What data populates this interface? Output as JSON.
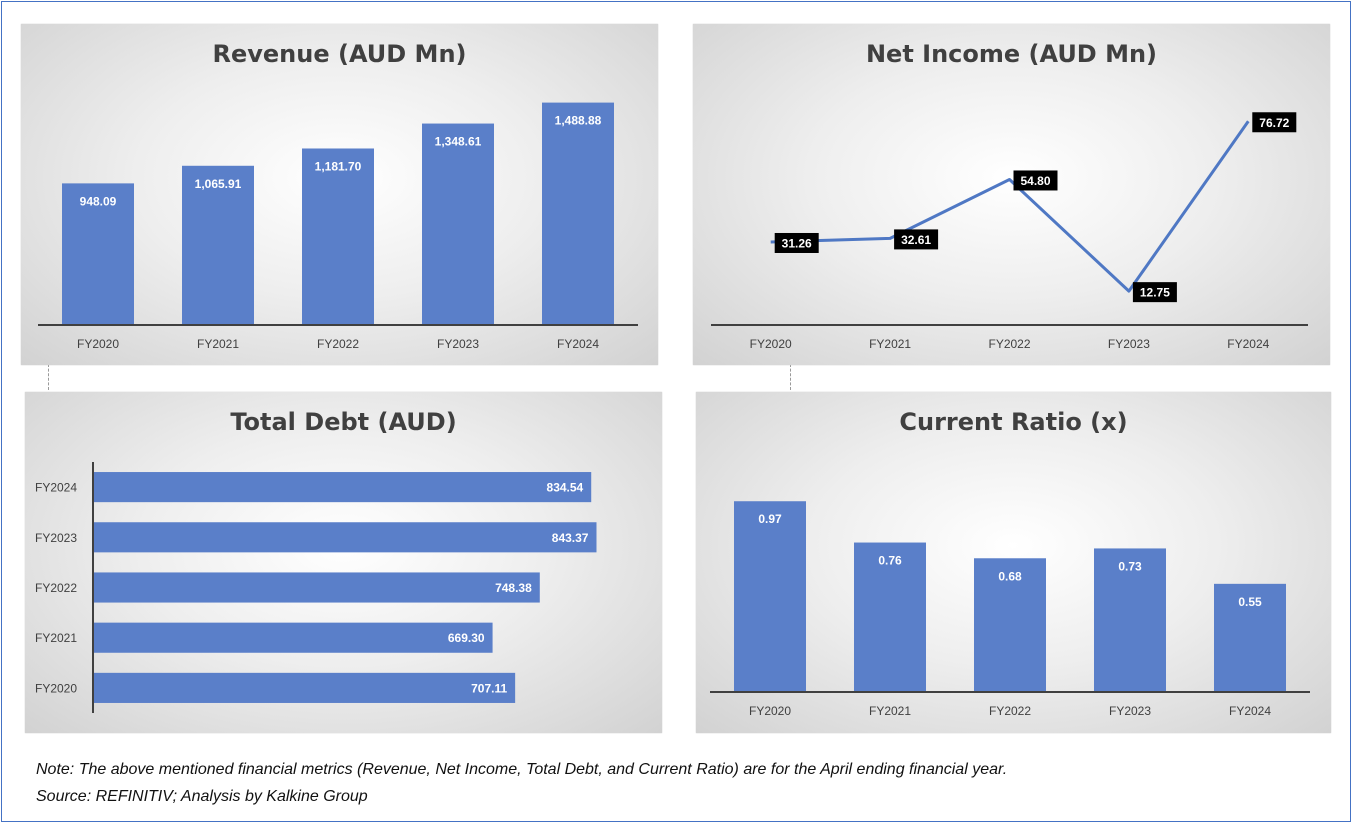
{
  "colors": {
    "bar": "#5a7fc9",
    "line": "#4f78c4",
    "axis": "#404040",
    "label_box": "#000000"
  },
  "charts": {
    "revenue": {
      "type": "bar",
      "title": "Revenue (AUD Mn)",
      "categories": [
        "FY2020",
        "FY2021",
        "FY2022",
        "FY2023",
        "FY2024"
      ],
      "values": [
        948.09,
        1065.91,
        1181.7,
        1348.61,
        1488.88
      ],
      "value_labels": [
        "948.09",
        "1,065.91",
        "1,181.70",
        "1,348.61",
        "1,488.88"
      ],
      "ylim": [
        0,
        1600
      ]
    },
    "net_income": {
      "type": "line",
      "title": "Net Income (AUD Mn)",
      "categories": [
        "FY2020",
        "FY2021",
        "FY2022",
        "FY2023",
        "FY2024"
      ],
      "values": [
        31.26,
        32.61,
        54.8,
        12.75,
        76.72
      ],
      "value_labels": [
        "31.26",
        "32.61",
        "54.80",
        "12.75",
        "76.72"
      ],
      "ylim": [
        0,
        90
      ]
    },
    "total_debt": {
      "type": "bar",
      "orientation": "horizontal",
      "title": "Total Debt (AUD)",
      "categories": [
        "FY2024",
        "FY2023",
        "FY2022",
        "FY2021",
        "FY2020"
      ],
      "values": [
        834.54,
        843.37,
        748.38,
        669.3,
        707.11
      ],
      "value_labels": [
        "834.54",
        "843.37",
        "748.38",
        "669.30",
        "707.11"
      ],
      "xlim": [
        0,
        1000
      ]
    },
    "current_ratio": {
      "type": "bar",
      "title": "Current Ratio (x)",
      "categories": [
        "FY2020",
        "FY2021",
        "FY2022",
        "FY2023",
        "FY2024"
      ],
      "values": [
        0.97,
        0.76,
        0.68,
        0.73,
        0.55
      ],
      "value_labels": [
        "0.97",
        "0.76",
        "0.68",
        "0.73",
        "0.55"
      ],
      "ylim": [
        0,
        1.2
      ]
    }
  },
  "chart_data": [
    {
      "type": "bar",
      "title": "Revenue (AUD Mn)",
      "categories": [
        "FY2020",
        "FY2021",
        "FY2022",
        "FY2023",
        "FY2024"
      ],
      "values": [
        948.09,
        1065.91,
        1181.7,
        1348.61,
        1488.88
      ],
      "xlabel": "",
      "ylabel": "",
      "legend": "none",
      "grid": false
    },
    {
      "type": "line",
      "title": "Net Income (AUD Mn)",
      "categories": [
        "FY2020",
        "FY2021",
        "FY2022",
        "FY2023",
        "FY2024"
      ],
      "values": [
        31.26,
        32.61,
        54.8,
        12.75,
        76.72
      ],
      "xlabel": "",
      "ylabel": "",
      "legend": "none",
      "grid": false
    },
    {
      "type": "bar",
      "orientation": "horizontal",
      "title": "Total Debt (AUD)",
      "categories": [
        "FY2024",
        "FY2023",
        "FY2022",
        "FY2021",
        "FY2020"
      ],
      "values": [
        834.54,
        843.37,
        748.38,
        669.3,
        707.11
      ],
      "xlabel": "",
      "ylabel": "",
      "legend": "none",
      "grid": false
    },
    {
      "type": "bar",
      "title": "Current Ratio (x)",
      "categories": [
        "FY2020",
        "FY2021",
        "FY2022",
        "FY2023",
        "FY2024"
      ],
      "values": [
        0.97,
        0.76,
        0.68,
        0.73,
        0.55
      ],
      "xlabel": "",
      "ylabel": "",
      "legend": "none",
      "grid": false
    }
  ],
  "footnote": {
    "note": "Note: The above mentioned financial metrics (Revenue, Net Income, Total Debt, and Current Ratio) are for the April ending financial year.",
    "source": "Source: REFINITIV; Analysis by Kalkine Group"
  }
}
